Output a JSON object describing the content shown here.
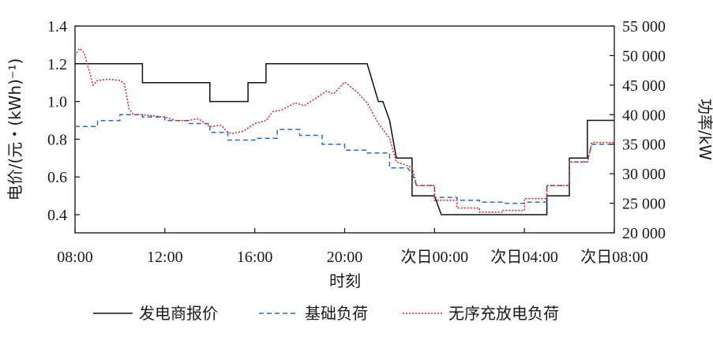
{
  "chart_data": {
    "type": "line",
    "xlabel": "时刻",
    "ylabel_left": "电价/(元・(kWh)⁻¹)",
    "ylabel_right": "功率/kW",
    "x_ticks": [
      "08:00",
      "12:00",
      "16:00",
      "20:00",
      "次日00:00",
      "次日04:00",
      "次日08:00"
    ],
    "xlim": [
      0,
      24
    ],
    "ylim_left": [
      0.3,
      1.4
    ],
    "ylim_right": [
      20000,
      55000
    ],
    "y_ticks_left": [
      "1.4",
      "1.2",
      "1.0",
      "0.8",
      "0.6",
      "0.4"
    ],
    "y_ticks_right": [
      "55 000",
      "50 000",
      "45 000",
      "40 000",
      "35 000",
      "30 000",
      "25 000",
      "20 000"
    ],
    "grid": false,
    "legend_position": "bottom",
    "series": [
      {
        "name": "发电商报价",
        "axis": "left",
        "style": "solid",
        "color": "#111111",
        "points": [
          [
            0,
            1.2
          ],
          [
            3,
            1.2
          ],
          [
            3,
            1.1
          ],
          [
            6,
            1.1
          ],
          [
            6,
            1.0
          ],
          [
            7.7,
            1.0
          ],
          [
            7.7,
            1.1
          ],
          [
            8.5,
            1.1
          ],
          [
            8.5,
            1.2
          ],
          [
            13,
            1.2
          ],
          [
            13.5,
            1.0
          ],
          [
            13.7,
            1.0
          ],
          [
            14,
            0.9
          ],
          [
            14.3,
            0.7
          ],
          [
            15,
            0.7
          ],
          [
            15,
            0.5
          ],
          [
            16,
            0.5
          ],
          [
            16.3,
            0.4
          ],
          [
            18,
            0.4
          ],
          [
            21,
            0.4
          ],
          [
            21,
            0.5
          ],
          [
            22,
            0.5
          ],
          [
            22,
            0.7
          ],
          [
            22.8,
            0.7
          ],
          [
            22.8,
            0.9
          ],
          [
            24,
            0.9
          ]
        ]
      },
      {
        "name": "基础负荷",
        "axis": "right",
        "style": "dashed",
        "color": "#2a6bbf",
        "points": [
          [
            0,
            38000
          ],
          [
            1,
            38000
          ],
          [
            1,
            39000
          ],
          [
            2,
            39000
          ],
          [
            2,
            40000
          ],
          [
            3,
            40000
          ],
          [
            3,
            39600
          ],
          [
            4,
            39600
          ],
          [
            4,
            39000
          ],
          [
            5,
            39000
          ],
          [
            5,
            38500
          ],
          [
            6,
            38500
          ],
          [
            6,
            37000
          ],
          [
            6.8,
            37000
          ],
          [
            6.8,
            35700
          ],
          [
            8,
            35700
          ],
          [
            8,
            36000
          ],
          [
            9,
            36000
          ],
          [
            9,
            37500
          ],
          [
            10,
            37500
          ],
          [
            10,
            36500
          ],
          [
            11,
            36500
          ],
          [
            11,
            35000
          ],
          [
            12,
            35000
          ],
          [
            12,
            34000
          ],
          [
            13,
            34000
          ],
          [
            13,
            33500
          ],
          [
            14,
            33500
          ],
          [
            14,
            31000
          ],
          [
            14.8,
            31000
          ],
          [
            15,
            30000
          ],
          [
            15.2,
            28000
          ],
          [
            16,
            28000
          ],
          [
            16,
            26000
          ],
          [
            17,
            26000
          ],
          [
            17,
            25500
          ],
          [
            18,
            25500
          ],
          [
            18,
            25200
          ],
          [
            19,
            25200
          ],
          [
            19,
            25000
          ],
          [
            20,
            25000
          ],
          [
            20,
            25200
          ],
          [
            21,
            25200
          ],
          [
            21,
            28000
          ],
          [
            22,
            28000
          ],
          [
            22,
            32000
          ],
          [
            22.8,
            32000
          ],
          [
            23,
            35000
          ],
          [
            24,
            35000
          ]
        ]
      },
      {
        "name": "无序充放电负荷",
        "axis": "right",
        "style": "dotted",
        "color": "#e02020",
        "points": [
          [
            0,
            50000
          ],
          [
            0.2,
            51200
          ],
          [
            0.4,
            50500
          ],
          [
            0.7,
            46500
          ],
          [
            0.8,
            45000
          ],
          [
            1,
            45800
          ],
          [
            1.5,
            46000
          ],
          [
            2,
            45800
          ],
          [
            2.2,
            45200
          ],
          [
            2.4,
            41000
          ],
          [
            2.6,
            40000
          ],
          [
            3,
            40000
          ],
          [
            3.5,
            39800
          ],
          [
            4,
            39600
          ],
          [
            4.5,
            39000
          ],
          [
            5,
            39000
          ],
          [
            5.5,
            39300
          ],
          [
            5.8,
            38500
          ],
          [
            6,
            38000
          ],
          [
            6.5,
            38200
          ],
          [
            6.8,
            37000
          ],
          [
            7,
            36800
          ],
          [
            7.5,
            37200
          ],
          [
            8,
            38500
          ],
          [
            8.5,
            39000
          ],
          [
            8.8,
            40500
          ],
          [
            9.2,
            40800
          ],
          [
            9.8,
            42000
          ],
          [
            10.2,
            41500
          ],
          [
            10.8,
            43000
          ],
          [
            11.2,
            44000
          ],
          [
            11.5,
            43500
          ],
          [
            12,
            45500
          ],
          [
            12.5,
            44000
          ],
          [
            13,
            42000
          ],
          [
            13.5,
            38500
          ],
          [
            14,
            36000
          ],
          [
            14.3,
            32000
          ],
          [
            14.7,
            31500
          ],
          [
            15,
            31000
          ],
          [
            15.2,
            28000
          ],
          [
            16,
            28000
          ],
          [
            16,
            25500
          ],
          [
            17,
            25500
          ],
          [
            17,
            24200
          ],
          [
            18,
            24200
          ],
          [
            18,
            23500
          ],
          [
            19,
            23500
          ],
          [
            19,
            23800
          ],
          [
            20,
            23800
          ],
          [
            20,
            25800
          ],
          [
            21,
            25800
          ],
          [
            21,
            28000
          ],
          [
            22,
            28000
          ],
          [
            22,
            32000
          ],
          [
            22.8,
            32000
          ],
          [
            23,
            35300
          ],
          [
            24,
            35300
          ]
        ]
      }
    ]
  }
}
